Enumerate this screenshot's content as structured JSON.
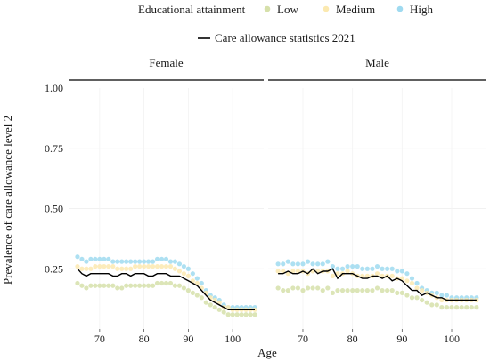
{
  "chart_data": {
    "type": "scatter",
    "xlabel": "Age",
    "ylabel": "Prevalence of care allowance level 2",
    "xlim": [
      63,
      107
    ],
    "ylim": [
      0,
      1
    ],
    "x_ticks": [
      70,
      80,
      90,
      100
    ],
    "y_ticks": [
      "0.25",
      "0.50",
      "0.75",
      "1.00"
    ],
    "y_tick_values": [
      0.25,
      0.5,
      0.75,
      1.0
    ],
    "grid": true,
    "legend_placement": "top",
    "legend": {
      "title": "Educational attainment",
      "points": [
        {
          "name": "Low",
          "color": "#d6e0aa"
        },
        {
          "name": "Medium",
          "color": "#fbe9b0"
        },
        {
          "name": "High",
          "color": "#9fdaf0"
        }
      ],
      "line": {
        "name": "Care allowance statistics 2021",
        "color": "#000000"
      }
    },
    "panels": [
      {
        "title": "Female",
        "x": [
          65,
          66,
          67,
          68,
          69,
          70,
          71,
          72,
          73,
          74,
          75,
          76,
          77,
          78,
          79,
          80,
          81,
          82,
          83,
          84,
          85,
          86,
          87,
          88,
          89,
          90,
          91,
          92,
          93,
          94,
          95,
          96,
          97,
          98,
          99,
          100,
          101,
          102,
          103,
          104,
          105
        ],
        "series": [
          {
            "name": "High",
            "values": [
              0.3,
              0.29,
              0.28,
              0.29,
              0.29,
              0.29,
              0.29,
              0.29,
              0.28,
              0.28,
              0.28,
              0.28,
              0.28,
              0.28,
              0.28,
              0.28,
              0.28,
              0.28,
              0.29,
              0.29,
              0.29,
              0.28,
              0.28,
              0.27,
              0.26,
              0.25,
              0.23,
              0.21,
              0.19,
              0.16,
              0.14,
              0.13,
              0.12,
              0.1,
              0.09,
              0.09,
              0.09,
              0.09,
              0.09,
              0.09,
              0.09
            ]
          },
          {
            "name": "Medium",
            "values": [
              0.26,
              0.25,
              0.25,
              0.25,
              0.26,
              0.26,
              0.26,
              0.26,
              0.26,
              0.25,
              0.25,
              0.25,
              0.25,
              0.26,
              0.26,
              0.26,
              0.26,
              0.26,
              0.26,
              0.26,
              0.26,
              0.26,
              0.25,
              0.24,
              0.23,
              0.22,
              0.2,
              0.19,
              0.17,
              0.15,
              0.13,
              0.12,
              0.11,
              0.09,
              0.09,
              0.08,
              0.08,
              0.08,
              0.08,
              0.08,
              0.08
            ]
          },
          {
            "name": "Low",
            "values": [
              0.19,
              0.18,
              0.17,
              0.18,
              0.18,
              0.18,
              0.18,
              0.18,
              0.18,
              0.17,
              0.17,
              0.18,
              0.18,
              0.18,
              0.18,
              0.18,
              0.18,
              0.18,
              0.19,
              0.19,
              0.19,
              0.19,
              0.18,
              0.18,
              0.17,
              0.16,
              0.15,
              0.14,
              0.13,
              0.11,
              0.1,
              0.09,
              0.08,
              0.07,
              0.06,
              0.06,
              0.06,
              0.06,
              0.06,
              0.06,
              0.06
            ]
          }
        ],
        "line": [
          0.25,
          0.23,
          0.22,
          0.23,
          0.23,
          0.23,
          0.23,
          0.23,
          0.22,
          0.22,
          0.23,
          0.23,
          0.22,
          0.23,
          0.23,
          0.23,
          0.22,
          0.22,
          0.23,
          0.23,
          0.23,
          0.22,
          0.22,
          0.22,
          0.21,
          0.2,
          0.19,
          0.18,
          0.16,
          0.14,
          0.12,
          0.11,
          0.1,
          0.09,
          0.08,
          0.08,
          0.08,
          0.08,
          0.08,
          0.08,
          0.08
        ]
      },
      {
        "title": "Male",
        "x": [
          65,
          66,
          67,
          68,
          69,
          70,
          71,
          72,
          73,
          74,
          75,
          76,
          77,
          78,
          79,
          80,
          81,
          82,
          83,
          84,
          85,
          86,
          87,
          88,
          89,
          90,
          91,
          92,
          93,
          94,
          95,
          96,
          97,
          98,
          99,
          100,
          101,
          102,
          103,
          104,
          105
        ],
        "series": [
          {
            "name": "High",
            "values": [
              0.27,
              0.27,
              0.28,
              0.27,
              0.27,
              0.27,
              0.28,
              0.27,
              0.27,
              0.27,
              0.28,
              0.26,
              0.25,
              0.25,
              0.26,
              0.26,
              0.26,
              0.25,
              0.25,
              0.25,
              0.26,
              0.25,
              0.25,
              0.25,
              0.24,
              0.24,
              0.23,
              0.21,
              0.19,
              0.17,
              0.16,
              0.15,
              0.15,
              0.14,
              0.14,
              0.13,
              0.13,
              0.13,
              0.13,
              0.13,
              0.13
            ]
          },
          {
            "name": "Medium",
            "values": [
              0.24,
              0.24,
              0.23,
              0.24,
              0.24,
              0.24,
              0.23,
              0.24,
              0.24,
              0.24,
              0.24,
              0.22,
              0.23,
              0.23,
              0.24,
              0.23,
              0.22,
              0.22,
              0.22,
              0.22,
              0.23,
              0.22,
              0.22,
              0.22,
              0.21,
              0.21,
              0.2,
              0.19,
              0.17,
              0.16,
              0.15,
              0.14,
              0.13,
              0.12,
              0.12,
              0.12,
              0.12,
              0.12,
              0.12,
              0.12,
              0.12
            ]
          },
          {
            "name": "Low",
            "values": [
              0.17,
              0.16,
              0.16,
              0.17,
              0.17,
              0.16,
              0.17,
              0.17,
              0.17,
              0.16,
              0.17,
              0.15,
              0.16,
              0.16,
              0.16,
              0.16,
              0.16,
              0.16,
              0.16,
              0.16,
              0.17,
              0.16,
              0.16,
              0.16,
              0.15,
              0.15,
              0.14,
              0.13,
              0.13,
              0.12,
              0.11,
              0.1,
              0.1,
              0.09,
              0.09,
              0.09,
              0.09,
              0.09,
              0.09,
              0.09,
              0.09
            ]
          }
        ],
        "line": [
          0.23,
          0.23,
          0.24,
          0.23,
          0.23,
          0.24,
          0.23,
          0.25,
          0.23,
          0.24,
          0.24,
          0.25,
          0.21,
          0.23,
          0.23,
          0.23,
          0.22,
          0.21,
          0.21,
          0.22,
          0.22,
          0.21,
          0.22,
          0.2,
          0.21,
          0.2,
          0.18,
          0.16,
          0.16,
          0.14,
          0.15,
          0.14,
          0.13,
          0.13,
          0.12,
          0.12,
          0.12,
          0.12,
          0.12,
          0.12,
          0.12
        ]
      }
    ]
  }
}
